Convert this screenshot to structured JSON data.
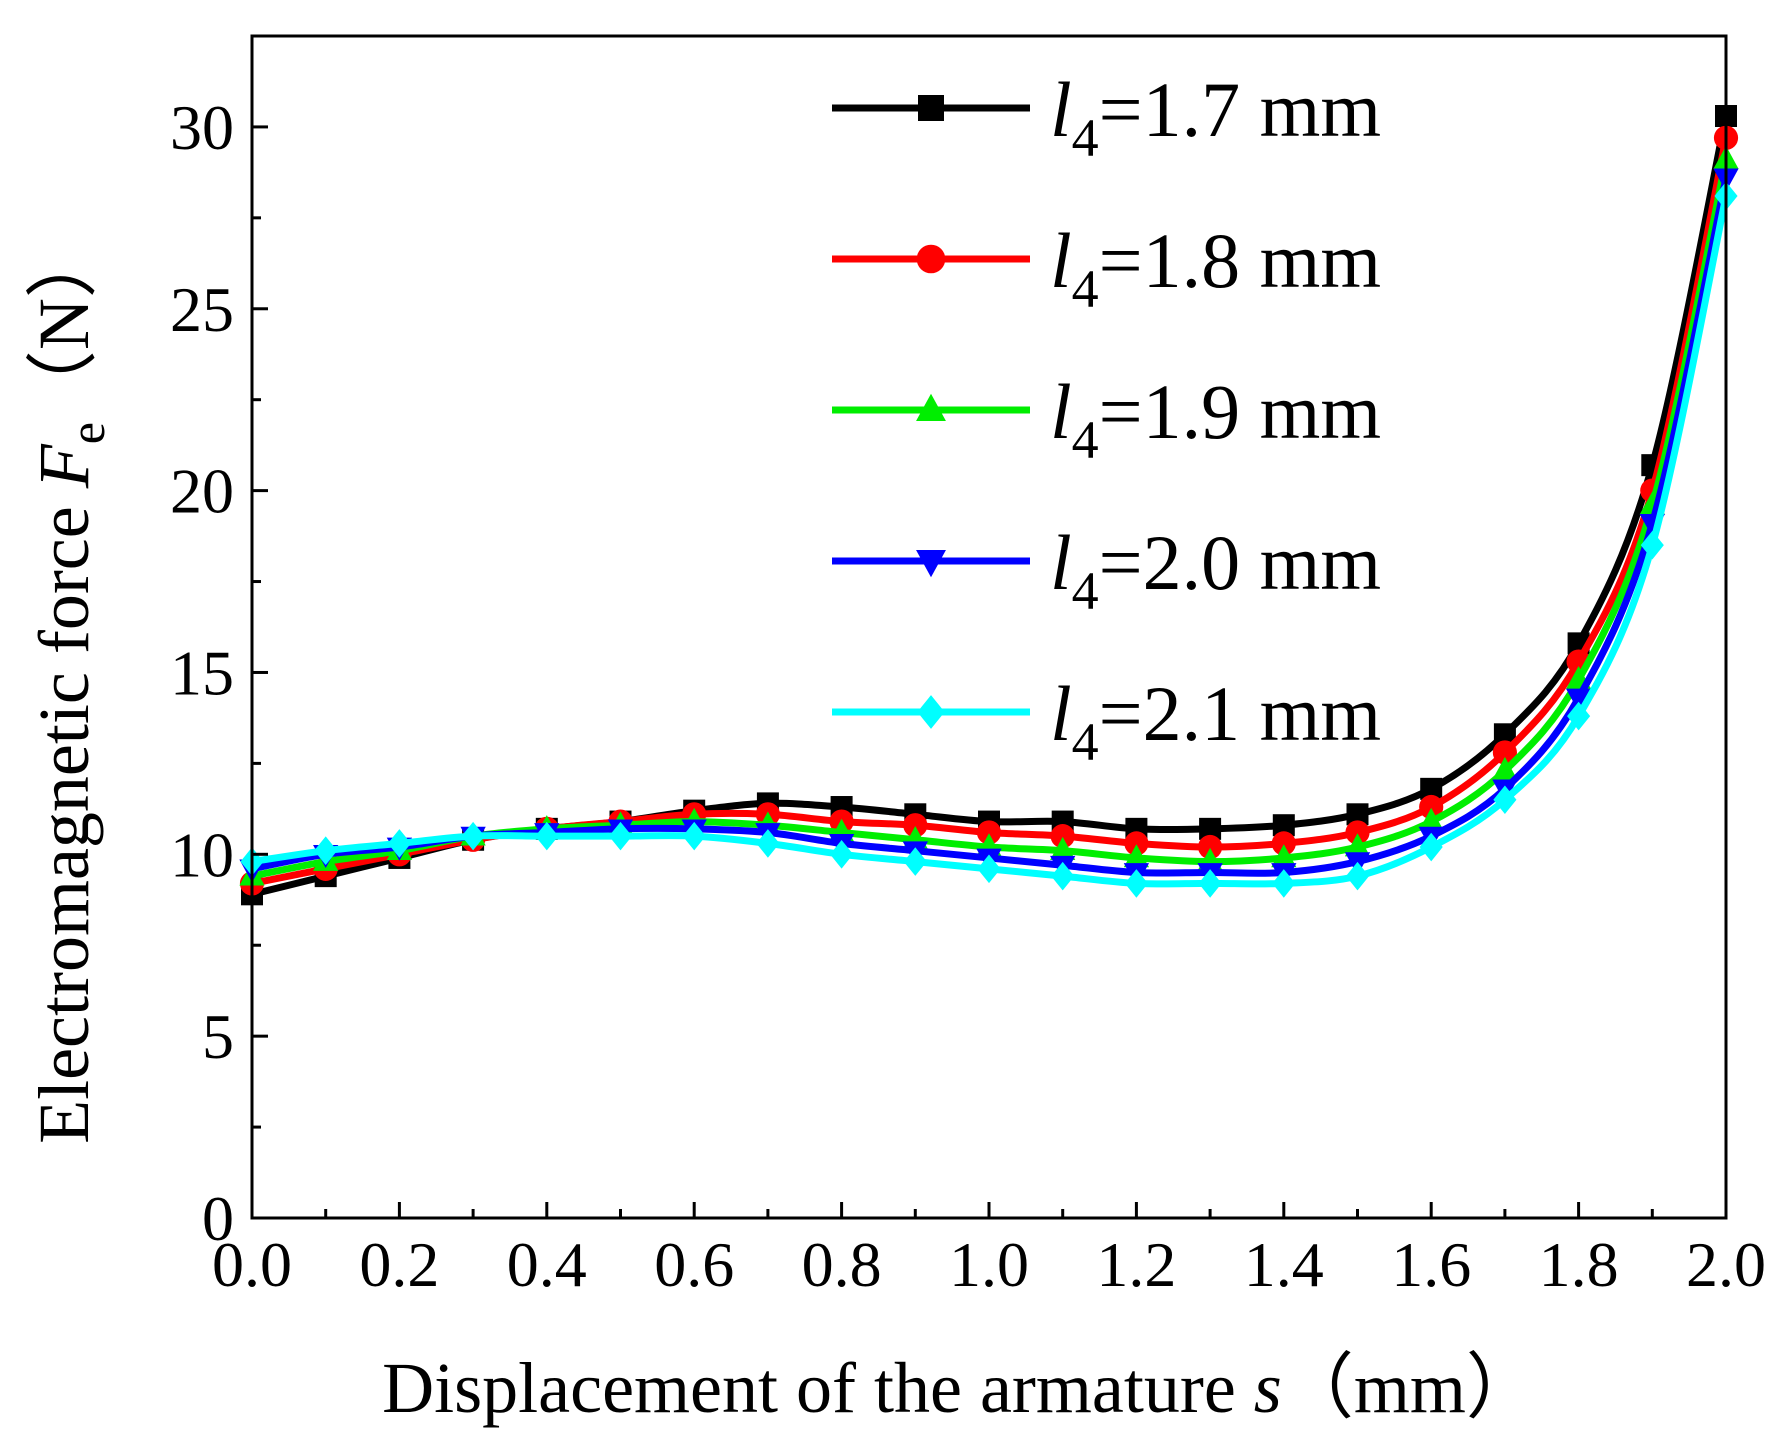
{
  "chart_data": {
    "type": "line",
    "title": "",
    "xlabel": {
      "text": "Displacement of the armature ",
      "var": "s",
      "unit": "（mm）"
    },
    "ylabel": {
      "text": "Electromagnetic force ",
      "var": "F",
      "sub": "e",
      "unit": "（N）"
    },
    "xlim": [
      0,
      2.0
    ],
    "ylim": [
      0,
      32.5
    ],
    "xticks": [
      "0.0",
      "0.2",
      "0.4",
      "0.6",
      "0.8",
      "1.0",
      "1.2",
      "1.4",
      "1.6",
      "1.8",
      "2.0"
    ],
    "yticks": [
      "0",
      "5",
      "10",
      "15",
      "20",
      "25",
      "30"
    ],
    "grid": false,
    "legend_position": "top-right",
    "x": [
      0,
      0.1,
      0.2,
      0.3,
      0.4,
      0.5,
      0.6,
      0.7,
      0.8,
      0.9,
      1.0,
      1.1,
      1.2,
      1.3,
      1.4,
      1.5,
      1.6,
      1.7,
      1.8,
      1.9,
      2.0
    ],
    "series": [
      {
        "name": "=1.7 mm",
        "var": "l",
        "sub": "4",
        "color": "#000000",
        "marker": "square",
        "values": [
          8.9,
          9.4,
          9.9,
          10.4,
          10.7,
          10.9,
          11.2,
          11.4,
          11.3,
          11.1,
          10.9,
          10.9,
          10.7,
          10.7,
          10.8,
          11.1,
          11.8,
          13.3,
          15.8,
          20.7,
          30.3
        ]
      },
      {
        "name": "=1.8 mm",
        "var": "l",
        "sub": "4",
        "color": "#ff0000",
        "marker": "circle",
        "values": [
          9.2,
          9.6,
          10.0,
          10.4,
          10.7,
          10.9,
          11.1,
          11.1,
          10.9,
          10.8,
          10.6,
          10.5,
          10.3,
          10.2,
          10.3,
          10.6,
          11.3,
          12.8,
          15.3,
          20.0,
          29.7
        ]
      },
      {
        "name": "=1.9 mm",
        "var": "l",
        "sub": "4",
        "color": "#00ee00",
        "marker": "triangle-up",
        "values": [
          9.4,
          9.8,
          10.1,
          10.5,
          10.7,
          10.8,
          10.9,
          10.8,
          10.6,
          10.4,
          10.2,
          10.1,
          9.9,
          9.8,
          9.9,
          10.2,
          10.9,
          12.3,
          14.8,
          19.6,
          29.1
        ]
      },
      {
        "name": "=2.0 mm",
        "var": "l",
        "sub": "4",
        "color": "#0000ff",
        "marker": "triangle-down",
        "values": [
          9.6,
          10.0,
          10.2,
          10.5,
          10.6,
          10.7,
          10.7,
          10.6,
          10.3,
          10.1,
          9.9,
          9.7,
          9.5,
          9.5,
          9.5,
          9.8,
          10.5,
          11.8,
          14.3,
          19.1,
          28.6
        ]
      },
      {
        "name": "=2.1 mm",
        "var": "l",
        "sub": "4",
        "color": "#00ffff",
        "marker": "diamond",
        "values": [
          9.8,
          10.1,
          10.3,
          10.5,
          10.5,
          10.5,
          10.5,
          10.3,
          10.0,
          9.8,
          9.6,
          9.4,
          9.2,
          9.2,
          9.2,
          9.4,
          10.2,
          11.5,
          13.8,
          18.5,
          28.1
        ]
      }
    ]
  }
}
